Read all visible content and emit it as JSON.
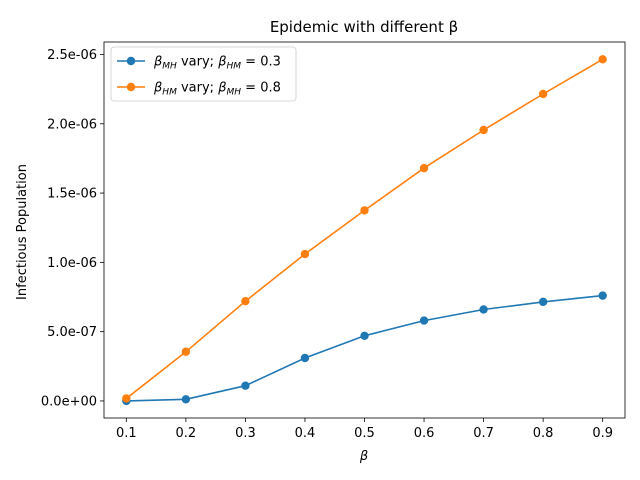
{
  "chart_data": {
    "type": "line",
    "title": "Epidemic with different β",
    "xlabel": "β",
    "ylabel": "Infectious Population",
    "x": [
      0.1,
      0.2,
      0.3,
      0.4,
      0.5,
      0.6,
      0.7,
      0.8,
      0.9
    ],
    "xlim": [
      0.0625,
      0.9375
    ],
    "ylim": [
      -1.23e-07,
      2.59e-06
    ],
    "xticks": [
      "0.1",
      "0.2",
      "0.3",
      "0.4",
      "0.5",
      "0.6",
      "0.7",
      "0.8",
      "0.9"
    ],
    "yticks": [
      {
        "value": 0,
        "label": "0.0e+00"
      },
      {
        "value": 5e-07,
        "label": "5.0e-07"
      },
      {
        "value": 1e-06,
        "label": "1.0e-06"
      },
      {
        "value": 1.5e-06,
        "label": "1.5e-06"
      },
      {
        "value": 2e-06,
        "label": "2.0e-06"
      },
      {
        "value": 2.5e-06,
        "label": "2.5e-06"
      }
    ],
    "legend_position": "upper-left",
    "series": [
      {
        "name": "β_MH vary; β_HM = 0.3",
        "legend": {
          "sym": "β",
          "sub": "MH",
          "mid": " vary; ",
          "sym2": "β",
          "sub2": "HM",
          "tail": " = 0.3"
        },
        "color": "#1f77b4",
        "values": [
          0.0,
          1.2e-08,
          1.1e-07,
          3.1e-07,
          4.7e-07,
          5.8e-07,
          6.6e-07,
          7.15e-07,
          7.6e-07
        ]
      },
      {
        "name": "β_HM vary; β_MH = 0.8",
        "legend": {
          "sym": "β",
          "sub": "HM",
          "mid": " vary; ",
          "sym2": "β",
          "sub2": "MH",
          "tail": " = 0.8"
        },
        "color": "#ff7f0e",
        "values": [
          1.8e-08,
          3.55e-07,
          7.2e-07,
          1.06e-06,
          1.375e-06,
          1.68e-06,
          1.955e-06,
          2.215e-06,
          2.465e-06
        ]
      }
    ]
  }
}
